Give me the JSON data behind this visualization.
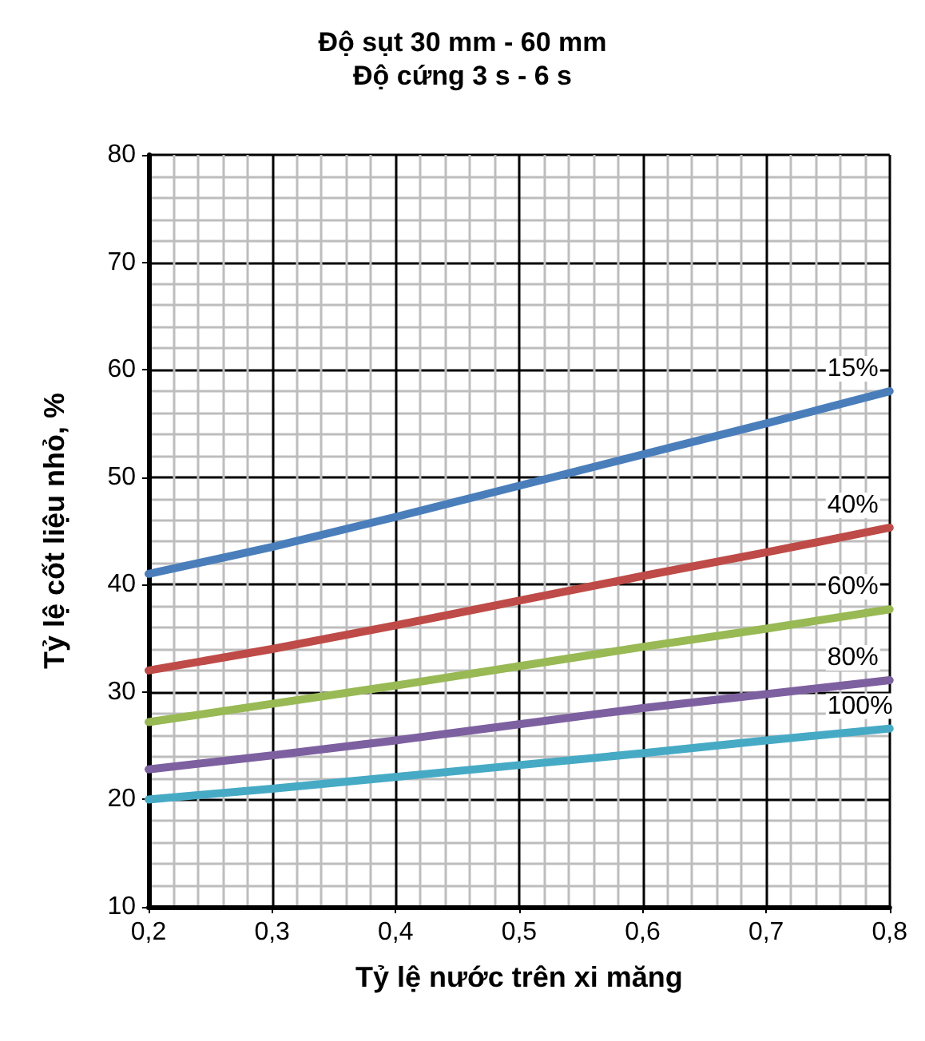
{
  "chart_data": {
    "type": "line",
    "title": "Độ sụt 30 mm - 60 mm",
    "subtitle": "Độ cứng 3 s - 6 s",
    "xlabel": "Tỷ lệ nước trên xi măng",
    "ylabel": "Tỷ lệ cốt liệu nhỏ, %",
    "x": [
      0.2,
      0.3,
      0.4,
      0.5,
      0.6,
      0.7,
      0.8
    ],
    "series": [
      {
        "name": "15%",
        "color": "#4a7ebb",
        "values": [
          41,
          43.5,
          46.3,
          49.2,
          52.1,
          55,
          58
        ]
      },
      {
        "name": "40%",
        "color": "#be4b48",
        "values": [
          32,
          34,
          36.2,
          38.5,
          40.8,
          43,
          45.3
        ]
      },
      {
        "name": "60%",
        "color": "#98b954",
        "values": [
          27.2,
          28.9,
          30.6,
          32.4,
          34.2,
          35.9,
          37.7
        ]
      },
      {
        "name": "80%",
        "color": "#7d60a0",
        "values": [
          22.8,
          24.1,
          25.5,
          27,
          28.5,
          29.8,
          31.1
        ]
      },
      {
        "name": "100%",
        "color": "#46aac5",
        "values": [
          20,
          21,
          22.1,
          23.2,
          24.3,
          25.5,
          26.6
        ]
      }
    ],
    "xlim": [
      0.2,
      0.8
    ],
    "xticks": [
      {
        "value": 0.2,
        "label": "0,2"
      },
      {
        "value": 0.3,
        "label": "0,3"
      },
      {
        "value": 0.4,
        "label": "0,4"
      },
      {
        "value": 0.5,
        "label": "0,5"
      },
      {
        "value": 0.6,
        "label": "0,6"
      },
      {
        "value": 0.7,
        "label": "0,7"
      },
      {
        "value": 0.8,
        "label": "0,8"
      }
    ],
    "ylim": [
      10,
      80
    ],
    "yticks": [
      10,
      20,
      30,
      40,
      50,
      60,
      70,
      80
    ],
    "grid": true,
    "legend": false,
    "marker": "none",
    "line_style": "solid"
  }
}
